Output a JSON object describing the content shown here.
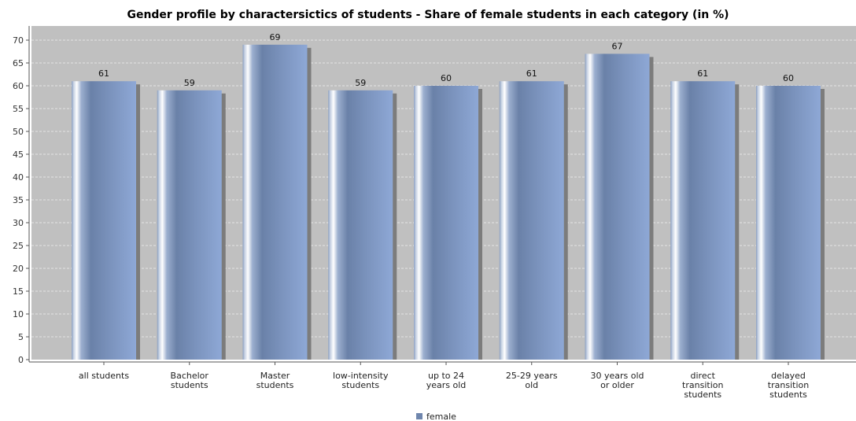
{
  "chart_data": {
    "type": "bar",
    "title": "Gender profile by charactersictics of students - Share of female students in each category (in %)",
    "xlabel": "",
    "ylabel": "",
    "ylim": [
      0,
      70
    ],
    "yticks": [
      0,
      5,
      10,
      15,
      20,
      25,
      30,
      35,
      40,
      45,
      50,
      55,
      60,
      65,
      70
    ],
    "categories": [
      [
        "all students"
      ],
      [
        "Bachelor",
        "students"
      ],
      [
        "Master",
        "students"
      ],
      [
        "low-intensity",
        "students"
      ],
      [
        "up to 24",
        "years old"
      ],
      [
        "25-29 years",
        "old"
      ],
      [
        "30 years old",
        "or older"
      ],
      [
        "direct",
        "transition",
        "students"
      ],
      [
        "delayed",
        "transition",
        "students"
      ]
    ],
    "series": [
      {
        "name": "female",
        "values": [
          61,
          59,
          69,
          59,
          60,
          61,
          67,
          61,
          60
        ],
        "color": "#6f86ad"
      }
    ],
    "grid": true,
    "legend_position": "bottom-center",
    "plot_background": "#c0c0c0"
  }
}
